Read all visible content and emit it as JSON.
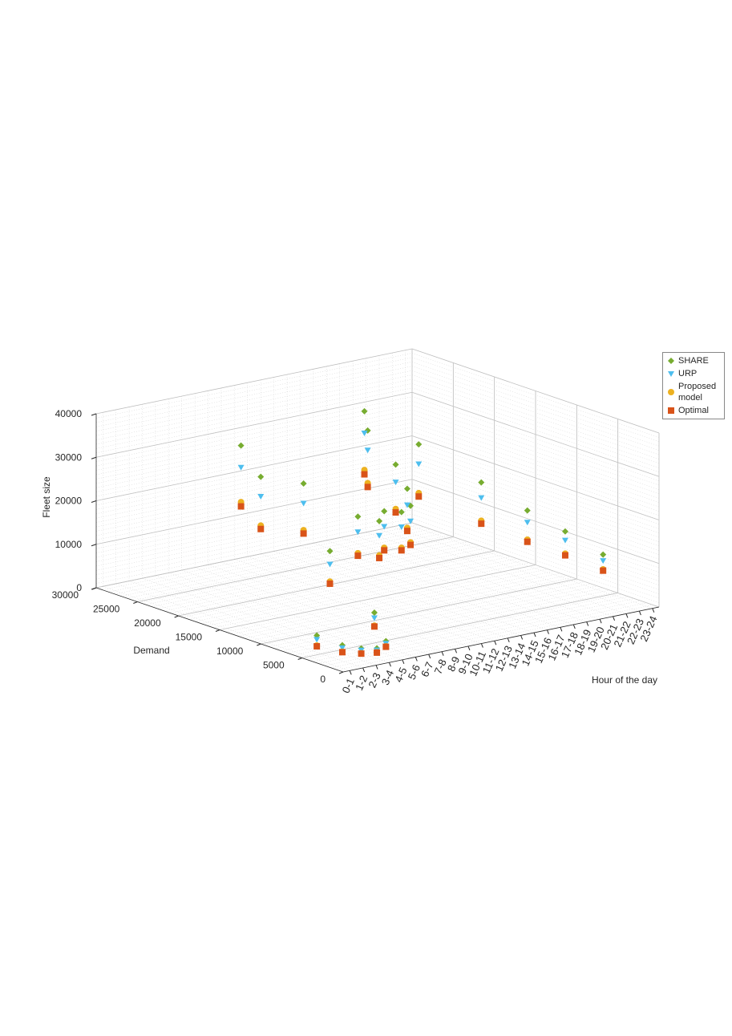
{
  "chart_data": {
    "type": "scatter3d",
    "x_label": "Hour of the day",
    "y_label": "Demand",
    "z_label": "Fleet size",
    "categories": [
      "0-1",
      "1-2",
      "2-3",
      "3-4",
      "4-5",
      "5-6",
      "6-7",
      "7-8",
      "8-9",
      "9-10",
      "10-11",
      "11-12",
      "12-13",
      "13-14",
      "14-15",
      "15-16",
      "16-17",
      "17-18",
      "18-19",
      "19-20",
      "20-21",
      "21-22",
      "22-23",
      "23-24"
    ],
    "demand": [
      4000,
      2500,
      1800,
      1500,
      2000,
      5000,
      12000,
      22000,
      26000,
      20000,
      15000,
      14000,
      15000,
      14500,
      15000,
      17000,
      20000,
      25000,
      27000,
      22000,
      16000,
      12000,
      9000,
      6000
    ],
    "ylim": [
      0,
      30000
    ],
    "yticks": [
      0,
      5000,
      10000,
      15000,
      20000,
      25000,
      30000
    ],
    "zlim": [
      0,
      40000
    ],
    "zticks": [
      0,
      10000,
      20000,
      30000,
      40000
    ],
    "grid": true,
    "legend": "outside-right",
    "series": [
      {
        "name": "SHARE",
        "color": "#77ac30",
        "marker": "diamond",
        "values": [
          5500,
          3600,
          2700,
          2300,
          3000,
          7000,
          16000,
          26000,
          30000,
          24500,
          19500,
          18500,
          19500,
          19000,
          19500,
          21500,
          24500,
          28500,
          31000,
          26000,
          20500,
          16000,
          12500,
          8500
        ]
      },
      {
        "name": "URP",
        "color": "#4dbeee",
        "marker": "triangle-down",
        "values": [
          4600,
          3000,
          2300,
          1900,
          2500,
          5800,
          13000,
          21500,
          25000,
          20000,
          16000,
          15200,
          16000,
          15600,
          16000,
          17800,
          20500,
          24000,
          26000,
          21500,
          17000,
          13300,
          10500,
          7100
        ]
      },
      {
        "name": "Proposed model",
        "color": "#edb120",
        "marker": "circle",
        "values": [
          3200,
          2100,
          1600,
          1400,
          1800,
          4000,
          9000,
          14800,
          17000,
          13800,
          11100,
          10600,
          11100,
          10800,
          11100,
          12500,
          14300,
          16400,
          17500,
          14800,
          11700,
          9300,
          7400,
          5100
        ]
      },
      {
        "name": "Optimal",
        "color": "#d95319",
        "marker": "square",
        "values": [
          3000,
          2000,
          1500,
          1300,
          1700,
          3800,
          8500,
          14000,
          16000,
          13000,
          10500,
          10000,
          10500,
          10200,
          10500,
          11800,
          13500,
          15500,
          16500,
          14000,
          11000,
          8800,
          7000,
          4800
        ]
      }
    ]
  }
}
